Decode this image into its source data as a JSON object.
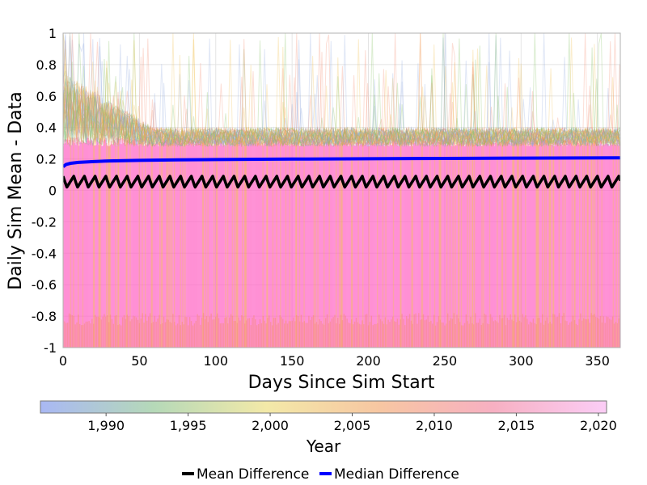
{
  "chart_data": {
    "type": "line",
    "xlabel": "Days Since Sim Start",
    "ylabel": "Daily Sim Mean - Data",
    "xlim": [
      0,
      365
    ],
    "ylim": [
      -1,
      1
    ],
    "x_ticks": [
      "0",
      "50",
      "100",
      "150",
      "200",
      "250",
      "300",
      "350"
    ],
    "y_ticks": [
      "1",
      "0.8",
      "0.6",
      "0.4",
      "0.2",
      "0",
      "-0.2",
      "-0.4",
      "-0.6",
      "-0.8",
      "-1"
    ],
    "grid": true,
    "colorbar": {
      "title": "Year",
      "range": [
        1986,
        2020.5
      ],
      "tick_labels": [
        "1,990",
        "1,995",
        "2,000",
        "2,005",
        "2,010",
        "2,015",
        "2,020"
      ],
      "tick_values": [
        1990,
        1995,
        2000,
        2005,
        2010,
        2015,
        2020
      ],
      "colors": [
        "#a9b8f4",
        "#b5d9b8",
        "#f3e9a8",
        "#f7c6a2",
        "#f7b0c2",
        "#fbcdf6"
      ]
    },
    "legend_position": "bottom",
    "series": [
      {
        "name": "Mean Difference",
        "color": "#000000",
        "pattern": "sawtooth",
        "period_days": 7,
        "low": 0.02,
        "high": 0.09
      },
      {
        "name": "Median Difference",
        "color": "#0000ff",
        "x": [
          0,
          2,
          5,
          10,
          20,
          30,
          50,
          75,
          100,
          150,
          200,
          250,
          300,
          365
        ],
        "values": [
          0.15,
          0.165,
          0.172,
          0.178,
          0.183,
          0.187,
          0.191,
          0.194,
          0.196,
          0.199,
          0.201,
          0.203,
          0.205,
          0.207
        ]
      }
    ],
    "ensemble_band": {
      "description_colors": [
        "#ff66c4",
        "#f58a6a",
        "#7fbf5a",
        "#f2c04d",
        "#8fa8e0"
      ],
      "core_low": -1,
      "core_high": 0.3,
      "spike_max": 1
    }
  }
}
